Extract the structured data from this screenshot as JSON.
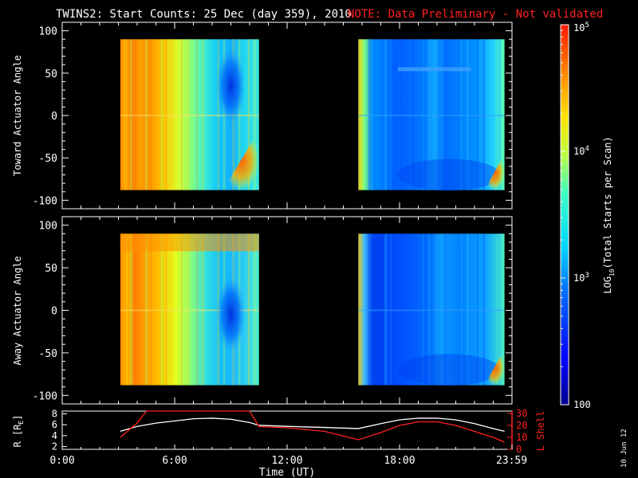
{
  "title": "TWINS2: Start Counts: 25 Dec (day 359), 2010",
  "note": "NOTE: Data Preliminary - Not validated",
  "date_stamp": "10 Jun 12",
  "colors": {
    "background": "#000000",
    "axes": "#ffffff",
    "note": "#ff2020",
    "lshell": "#ff2020",
    "r_line": "#ffffff"
  },
  "chart_data": [
    {
      "type": "heatmap",
      "ylabel": "Toward Actuator Angle",
      "xlim": [
        0,
        24
      ],
      "ylim": [
        -110,
        110
      ],
      "yticks": [
        -100,
        -50,
        0,
        50,
        100
      ],
      "data_blocks": [
        {
          "start": 3.1,
          "end": 10.5,
          "angle_range": [
            -88,
            90
          ]
        },
        {
          "start": 15.8,
          "end": 23.6,
          "angle_range": [
            -88,
            90
          ]
        }
      ]
    },
    {
      "type": "heatmap",
      "ylabel": "Away Actuator Angle",
      "xlim": [
        0,
        24
      ],
      "ylim": [
        -110,
        110
      ],
      "yticks": [
        -100,
        -50,
        0,
        50,
        100
      ],
      "xticks": [
        "0:00",
        "6:00",
        "12:00",
        "18:00",
        "23:59"
      ],
      "data_blocks": [
        {
          "start": 3.1,
          "end": 10.5,
          "angle_range": [
            -88,
            90
          ]
        },
        {
          "start": 15.8,
          "end": 23.6,
          "angle_range": [
            -88,
            90
          ]
        }
      ]
    },
    {
      "type": "line",
      "xlabel": "Time (UT)",
      "ylabel_left": "R [RE]",
      "ylabel_left_main": "R [R",
      "ylabel_left_sub": "E",
      "ylabel_left_end": "]",
      "ylabel_right": "L Shell",
      "xlim": [
        0,
        24
      ],
      "ylim_left": [
        1.5,
        8.5
      ],
      "yticks_left": [
        2,
        4,
        6,
        8
      ],
      "ylim_right": [
        0,
        32
      ],
      "yticks_right": [
        0,
        10,
        20,
        30
      ],
      "xticks": [
        "0:00",
        "6:00",
        "12:00",
        "18:00",
        "23:59"
      ],
      "xtick_values": [
        0,
        6,
        12,
        18,
        23.98
      ],
      "series": [
        {
          "axis": "left",
          "x": [
            3.1,
            4.0,
            5.0,
            6.0,
            7.0,
            8.0,
            9.0,
            10.0,
            10.5,
            12.0,
            14.0,
            15.8,
            17.0,
            18.0,
            19.0,
            20.0,
            21.0,
            22.0,
            23.0,
            23.6
          ],
          "y": [
            4.8,
            5.7,
            6.3,
            6.7,
            7.1,
            7.2,
            7.0,
            6.4,
            5.9,
            5.7,
            5.5,
            5.3,
            6.2,
            6.9,
            7.2,
            7.2,
            6.9,
            6.2,
            5.3,
            4.8
          ]
        },
        {
          "axis": "right",
          "x": [
            3.1,
            4.0,
            4.5,
            10.0,
            10.5,
            12.0,
            14.0,
            15.8,
            17.0,
            18.0,
            19.0,
            20.0,
            21.0,
            22.0,
            23.0,
            23.6
          ],
          "y": [
            10,
            22,
            35,
            35,
            19,
            18,
            15,
            8,
            14,
            20,
            23,
            23,
            20,
            15,
            10,
            6
          ]
        }
      ]
    }
  ],
  "colorbar": {
    "label": "LOG10(Total Starts per Scan)",
    "label_pre": "LOG",
    "label_sub": "10",
    "label_post": "(Total Starts per Scan)",
    "range": [
      100,
      100000
    ],
    "ticks": [
      {
        "value": 100,
        "base": "100",
        "exp": ""
      },
      {
        "value": 1000,
        "base": "10",
        "exp": "3"
      },
      {
        "value": 10000,
        "base": "10",
        "exp": "4"
      },
      {
        "value": 100000,
        "base": "10",
        "exp": "5"
      }
    ]
  }
}
